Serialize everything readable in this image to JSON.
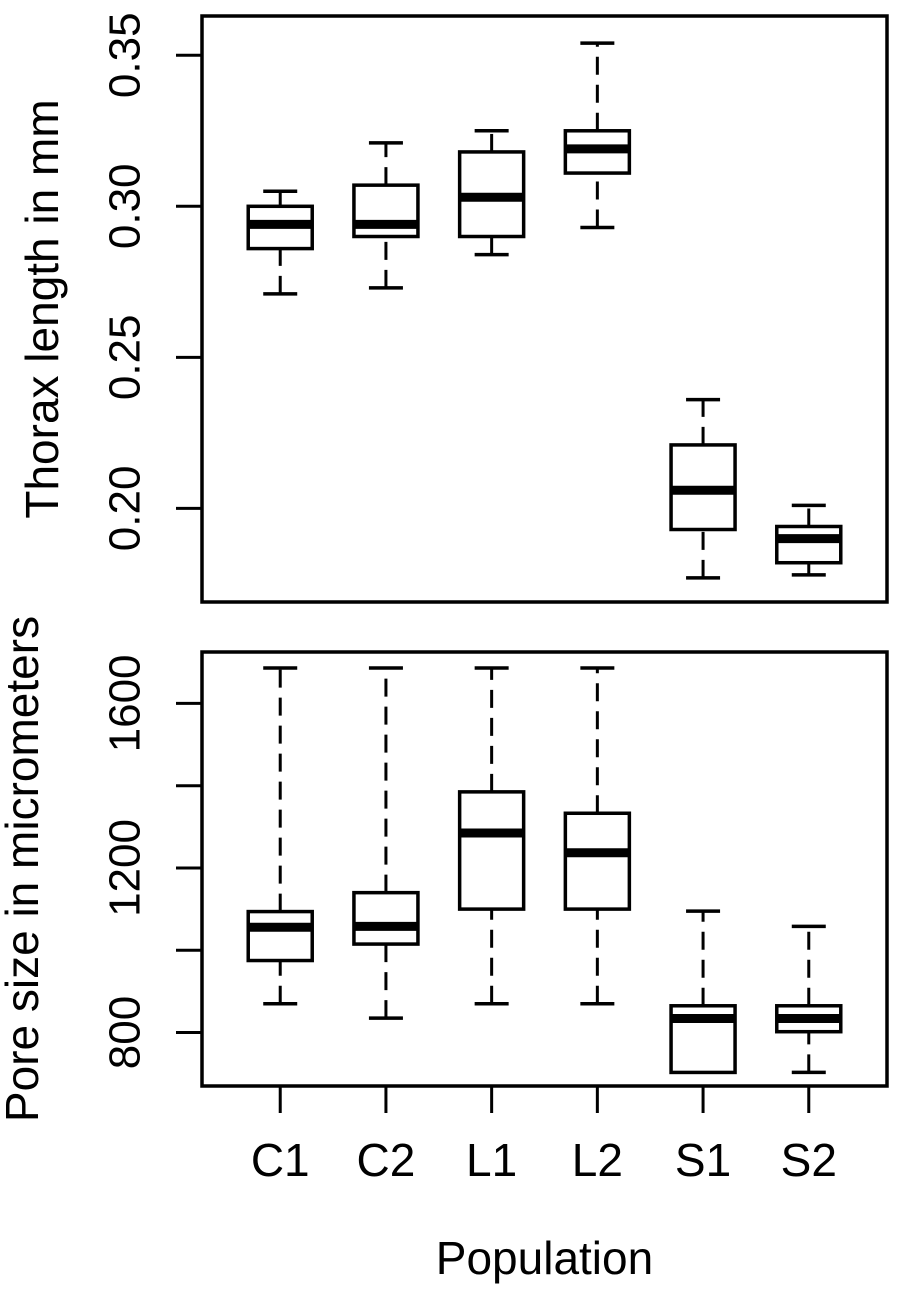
{
  "figure": {
    "background": "#ffffff",
    "foreground": "#000000",
    "xlabel": "Population",
    "categories": [
      "C1",
      "C2",
      "L1",
      "L2",
      "S1",
      "S2"
    ]
  },
  "chart_data": [
    {
      "type": "boxplot",
      "panel": "top",
      "ylabel": "Thorax length in mm",
      "categories": [
        "C1",
        "C2",
        "L1",
        "L2",
        "S1",
        "S2"
      ],
      "ylim": [
        0.169,
        0.363
      ],
      "yticks": [
        0.2,
        0.25,
        0.3,
        0.35
      ],
      "ytick_labels": [
        "0.20",
        "0.25",
        "0.30",
        "0.35"
      ],
      "grid": false,
      "whisker_style": "dashed",
      "series": [
        {
          "name": "C1",
          "min": 0.271,
          "q1": 0.286,
          "median": 0.294,
          "q3": 0.3,
          "max": 0.305
        },
        {
          "name": "C2",
          "min": 0.273,
          "q1": 0.29,
          "median": 0.294,
          "q3": 0.307,
          "max": 0.321
        },
        {
          "name": "L1",
          "min": 0.284,
          "q1": 0.29,
          "median": 0.303,
          "q3": 0.318,
          "max": 0.325
        },
        {
          "name": "L2",
          "min": 0.293,
          "q1": 0.311,
          "median": 0.319,
          "q3": 0.325,
          "max": 0.354
        },
        {
          "name": "S1",
          "min": 0.177,
          "q1": 0.193,
          "median": 0.206,
          "q3": 0.221,
          "max": 0.236
        },
        {
          "name": "S2",
          "min": 0.178,
          "q1": 0.182,
          "median": 0.19,
          "q3": 0.194,
          "max": 0.201
        }
      ]
    },
    {
      "type": "boxplot",
      "panel": "bottom",
      "ylabel": "Pore size in micrometers",
      "categories": [
        "C1",
        "C2",
        "L1",
        "L2",
        "S1",
        "S2"
      ],
      "ylim": [
        670,
        1725
      ],
      "yticks": [
        800,
        1000,
        1200,
        1400,
        1600
      ],
      "ytick_labels": [
        "800",
        "",
        "1200",
        "",
        "1600"
      ],
      "grid": false,
      "whisker_style": "dashed",
      "series": [
        {
          "name": "C1",
          "min": 870,
          "q1": 975,
          "median": 1056,
          "q3": 1094,
          "max": 1686
        },
        {
          "name": "C2",
          "min": 835,
          "q1": 1015,
          "median": 1058,
          "q3": 1140,
          "max": 1686
        },
        {
          "name": "L1",
          "min": 870,
          "q1": 1100,
          "median": 1285,
          "q3": 1385,
          "max": 1686
        },
        {
          "name": "L2",
          "min": 870,
          "q1": 1100,
          "median": 1237,
          "q3": 1333,
          "max": 1686
        },
        {
          "name": "S1",
          "min": 703,
          "q1": 703,
          "median": 834,
          "q3": 865,
          "max": 1095
        },
        {
          "name": "S2",
          "min": 703,
          "q1": 802,
          "median": 834,
          "q3": 865,
          "max": 1058
        }
      ]
    }
  ]
}
